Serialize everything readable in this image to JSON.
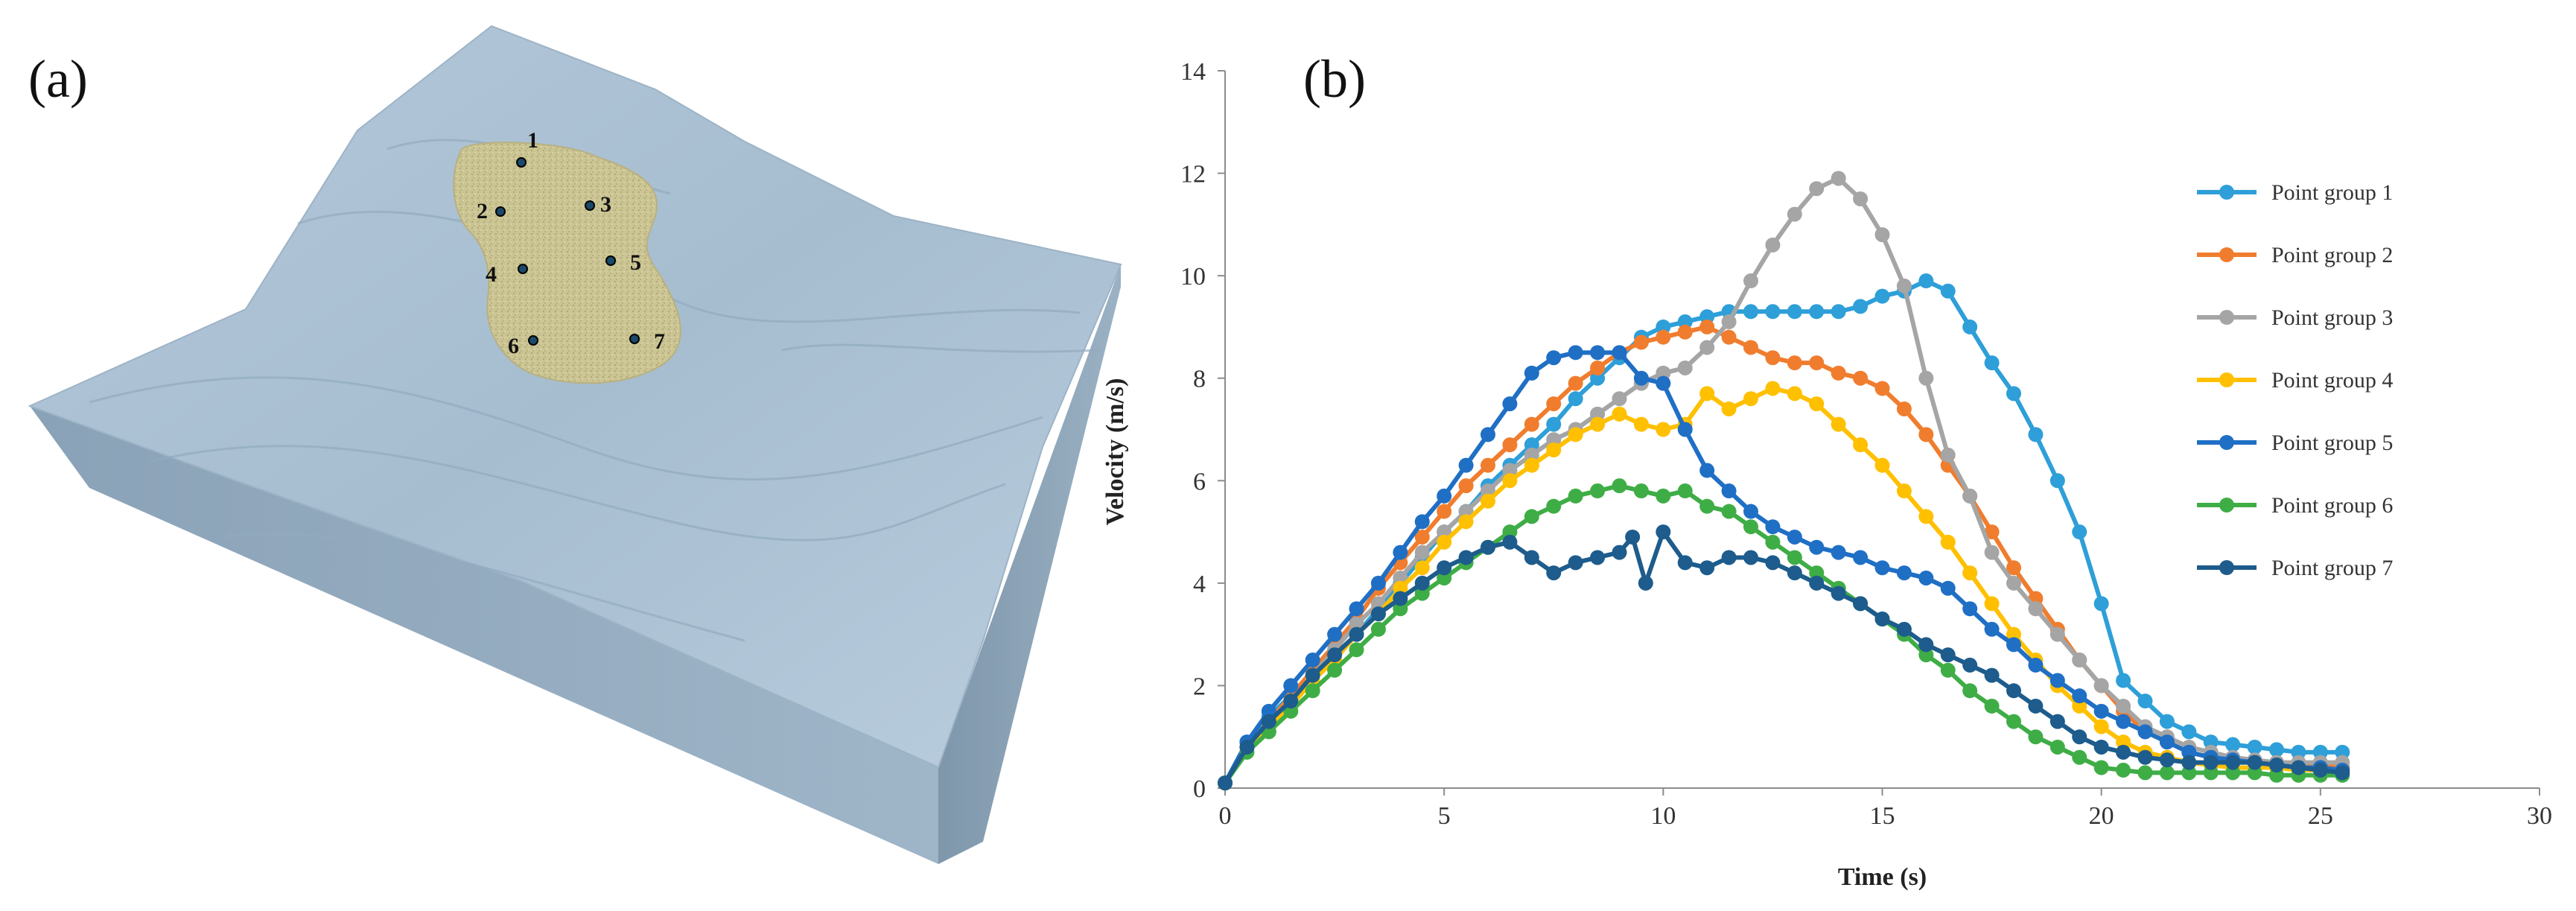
{
  "panels": {
    "a": {
      "label": "(a)",
      "points": [
        "1",
        "2",
        "3",
        "4",
        "5",
        "6",
        "7"
      ]
    },
    "b": {
      "label": "(b)"
    }
  },
  "colors": {
    "terrain_top": "#a9bfd2",
    "terrain_side_left": "#8ea6bb",
    "terrain_side_front": "#93a9bd",
    "landslide": "#cfc79a",
    "point_marker": "#1a4a6a"
  },
  "chart_data": {
    "type": "line",
    "title": "",
    "xlabel": "Time (s)",
    "ylabel": "Velocity (m/s)",
    "xlim": [
      0,
      30
    ],
    "ylim": [
      0,
      14
    ],
    "xticks": [
      0,
      5,
      10,
      15,
      20,
      25,
      30
    ],
    "yticks": [
      0,
      2,
      4,
      6,
      8,
      10,
      12,
      14
    ],
    "grid": false,
    "legend": "right",
    "series": [
      {
        "name": "Point group 1",
        "color": "#2e9fd8",
        "x": [
          0,
          0.5,
          1,
          1.5,
          2,
          2.5,
          3,
          3.5,
          4,
          4.5,
          5,
          5.5,
          6,
          6.5,
          7,
          7.5,
          8,
          8.5,
          9,
          9.5,
          10,
          10.5,
          11,
          11.5,
          12,
          12.5,
          13,
          13.5,
          14,
          14.5,
          15,
          15.5,
          16,
          16.5,
          17,
          17.5,
          18,
          18.5,
          19,
          19.5,
          20,
          20.5,
          21,
          21.5,
          22,
          22.5,
          23,
          23.5,
          24,
          24.5,
          25,
          25.5
        ],
        "y": [
          0.1,
          0.9,
          1.4,
          1.8,
          2.2,
          2.6,
          3.0,
          3.5,
          4.0,
          4.5,
          5.0,
          5.4,
          5.9,
          6.3,
          6.7,
          7.1,
          7.6,
          8.0,
          8.4,
          8.8,
          9.0,
          9.1,
          9.2,
          9.3,
          9.3,
          9.3,
          9.3,
          9.3,
          9.3,
          9.4,
          9.6,
          9.7,
          9.9,
          9.7,
          9.0,
          8.3,
          7.7,
          6.9,
          6.0,
          5.0,
          3.6,
          2.1,
          1.7,
          1.3,
          1.1,
          0.9,
          0.85,
          0.8,
          0.75,
          0.7,
          0.7,
          0.7
        ]
      },
      {
        "name": "Point group 2",
        "color": "#f07d2e",
        "x": [
          0,
          0.5,
          1,
          1.5,
          2,
          2.5,
          3,
          3.5,
          4,
          4.5,
          5,
          5.5,
          6,
          6.5,
          7,
          7.5,
          8,
          8.5,
          9,
          9.5,
          10,
          10.5,
          11,
          11.5,
          12,
          12.5,
          13,
          13.5,
          14,
          14.5,
          15,
          15.5,
          16,
          16.5,
          17,
          17.5,
          18,
          18.5,
          19,
          19.5,
          20,
          20.5,
          21,
          21.5,
          22,
          22.5,
          23,
          23.5,
          24,
          24.5,
          25,
          25.5
        ],
        "y": [
          0.1,
          0.8,
          1.3,
          1.8,
          2.3,
          2.8,
          3.3,
          3.9,
          4.4,
          4.9,
          5.4,
          5.9,
          6.3,
          6.7,
          7.1,
          7.5,
          7.9,
          8.2,
          8.5,
          8.7,
          8.8,
          8.9,
          9.0,
          8.8,
          8.6,
          8.4,
          8.3,
          8.3,
          8.1,
          8.0,
          7.8,
          7.4,
          6.9,
          6.3,
          5.7,
          5.0,
          4.3,
          3.7,
          3.1,
          2.5,
          2.0,
          1.5,
          1.1,
          0.9,
          0.7,
          0.6,
          0.55,
          0.5,
          0.5,
          0.45,
          0.45,
          0.4
        ]
      },
      {
        "name": "Point group 3",
        "color": "#a5a5a5",
        "x": [
          0,
          0.5,
          1,
          1.5,
          2,
          2.5,
          3,
          3.5,
          4,
          4.5,
          5,
          5.5,
          6,
          6.5,
          7,
          7.5,
          8,
          8.5,
          9,
          9.5,
          10,
          10.5,
          11,
          11.5,
          12,
          12.5,
          13,
          13.5,
          14,
          14.5,
          15,
          15.5,
          16,
          16.5,
          17,
          17.5,
          18,
          18.5,
          19,
          19.5,
          20,
          20.5,
          21,
          21.5,
          22,
          22.5,
          23,
          23.5,
          24,
          24.5,
          25,
          25.5
        ],
        "y": [
          0.1,
          0.8,
          1.3,
          1.7,
          2.2,
          2.7,
          3.2,
          3.6,
          4.1,
          4.6,
          5.0,
          5.4,
          5.8,
          6.2,
          6.5,
          6.8,
          7.0,
          7.3,
          7.6,
          7.9,
          8.1,
          8.2,
          8.6,
          9.1,
          9.9,
          10.6,
          11.2,
          11.7,
          11.9,
          11.5,
          10.8,
          9.8,
          8.0,
          6.5,
          5.7,
          4.6,
          4.0,
          3.5,
          3.0,
          2.5,
          2.0,
          1.6,
          1.2,
          1.0,
          0.8,
          0.7,
          0.6,
          0.55,
          0.5,
          0.5,
          0.5,
          0.5
        ]
      },
      {
        "name": "Point group 4",
        "color": "#ffc000",
        "x": [
          0,
          0.5,
          1,
          1.5,
          2,
          2.5,
          3,
          3.5,
          4,
          4.5,
          5,
          5.5,
          6,
          6.5,
          7,
          7.5,
          8,
          8.5,
          9,
          9.5,
          10,
          10.5,
          11,
          11.5,
          12,
          12.5,
          13,
          13.5,
          14,
          14.5,
          15,
          15.5,
          16,
          16.5,
          17,
          17.5,
          18,
          18.5,
          19,
          19.5,
          20,
          20.5,
          21,
          21.5,
          22,
          22.5,
          23,
          23.5,
          24,
          24.5,
          25,
          25.5
        ],
        "y": [
          0.1,
          0.8,
          1.2,
          1.6,
          2.1,
          2.5,
          3.0,
          3.4,
          3.9,
          4.3,
          4.8,
          5.2,
          5.6,
          6.0,
          6.3,
          6.6,
          6.9,
          7.1,
          7.3,
          7.1,
          7.0,
          7.1,
          7.7,
          7.4,
          7.6,
          7.8,
          7.7,
          7.5,
          7.1,
          6.7,
          6.3,
          5.8,
          5.3,
          4.8,
          4.2,
          3.6,
          3.0,
          2.5,
          2.0,
          1.6,
          1.2,
          0.9,
          0.7,
          0.6,
          0.5,
          0.45,
          0.4,
          0.4,
          0.4,
          0.35,
          0.35,
          0.35
        ]
      },
      {
        "name": "Point group 5",
        "color": "#1f6fc5",
        "x": [
          0,
          0.5,
          1,
          1.5,
          2,
          2.5,
          3,
          3.5,
          4,
          4.5,
          5,
          5.5,
          6,
          6.5,
          7,
          7.5,
          8,
          8.5,
          9,
          9.5,
          10,
          10.5,
          11,
          11.5,
          12,
          12.5,
          13,
          13.5,
          14,
          14.5,
          15,
          15.5,
          16,
          16.5,
          17,
          17.5,
          18,
          18.5,
          19,
          19.5,
          20,
          20.5,
          21,
          21.5,
          22,
          22.5,
          23,
          23.5,
          24,
          24.5,
          25,
          25.5
        ],
        "y": [
          0.1,
          0.9,
          1.5,
          2.0,
          2.5,
          3.0,
          3.5,
          4.0,
          4.6,
          5.2,
          5.7,
          6.3,
          6.9,
          7.5,
          8.1,
          8.4,
          8.5,
          8.5,
          8.5,
          8.0,
          7.9,
          7.0,
          6.2,
          5.8,
          5.4,
          5.1,
          4.9,
          4.7,
          4.6,
          4.5,
          4.3,
          4.2,
          4.1,
          3.9,
          3.5,
          3.1,
          2.8,
          2.4,
          2.1,
          1.8,
          1.5,
          1.3,
          1.1,
          0.9,
          0.7,
          0.6,
          0.55,
          0.5,
          0.45,
          0.4,
          0.4,
          0.35
        ]
      },
      {
        "name": "Point group 6",
        "color": "#3fad46",
        "x": [
          0,
          0.5,
          1,
          1.5,
          2,
          2.5,
          3,
          3.5,
          4,
          4.5,
          5,
          5.5,
          6,
          6.5,
          7,
          7.5,
          8,
          8.5,
          9,
          9.5,
          10,
          10.5,
          11,
          11.5,
          12,
          12.5,
          13,
          13.5,
          14,
          14.5,
          15,
          15.5,
          16,
          16.5,
          17,
          17.5,
          18,
          18.5,
          19,
          19.5,
          20,
          20.5,
          21,
          21.5,
          22,
          22.5,
          23,
          23.5,
          24,
          24.5,
          25,
          25.5
        ],
        "y": [
          0.1,
          0.7,
          1.1,
          1.5,
          1.9,
          2.3,
          2.7,
          3.1,
          3.5,
          3.8,
          4.1,
          4.4,
          4.7,
          5.0,
          5.3,
          5.5,
          5.7,
          5.8,
          5.9,
          5.8,
          5.7,
          5.8,
          5.5,
          5.4,
          5.1,
          4.8,
          4.5,
          4.2,
          3.9,
          3.6,
          3.3,
          3.0,
          2.6,
          2.3,
          1.9,
          1.6,
          1.3,
          1.0,
          0.8,
          0.6,
          0.4,
          0.35,
          0.3,
          0.3,
          0.3,
          0.3,
          0.3,
          0.3,
          0.25,
          0.25,
          0.25,
          0.25
        ]
      },
      {
        "name": "Point group 7",
        "color": "#1d5c8c",
        "x": [
          0,
          0.5,
          1,
          1.5,
          2,
          2.5,
          3,
          3.5,
          4,
          4.5,
          5,
          5.5,
          6,
          6.5,
          7,
          7.5,
          8,
          8.5,
          9,
          9.3,
          9.6,
          10,
          10.5,
          11,
          11.5,
          12,
          12.5,
          13,
          13.5,
          14,
          14.5,
          15,
          15.5,
          16,
          16.5,
          17,
          17.5,
          18,
          18.5,
          19,
          19.5,
          20,
          20.5,
          21,
          21.5,
          22,
          22.5,
          23,
          23.5,
          24,
          24.5,
          25,
          25.5
        ],
        "y": [
          0.1,
          0.8,
          1.3,
          1.7,
          2.2,
          2.6,
          3.0,
          3.4,
          3.7,
          4.0,
          4.3,
          4.5,
          4.7,
          4.8,
          4.5,
          4.2,
          4.4,
          4.5,
          4.6,
          4.9,
          4.0,
          5.0,
          4.4,
          4.3,
          4.5,
          4.5,
          4.4,
          4.2,
          4.0,
          3.8,
          3.6,
          3.3,
          3.1,
          2.8,
          2.6,
          2.4,
          2.2,
          1.9,
          1.6,
          1.3,
          1.0,
          0.8,
          0.7,
          0.6,
          0.55,
          0.5,
          0.5,
          0.5,
          0.5,
          0.45,
          0.4,
          0.35,
          0.3
        ]
      }
    ]
  }
}
